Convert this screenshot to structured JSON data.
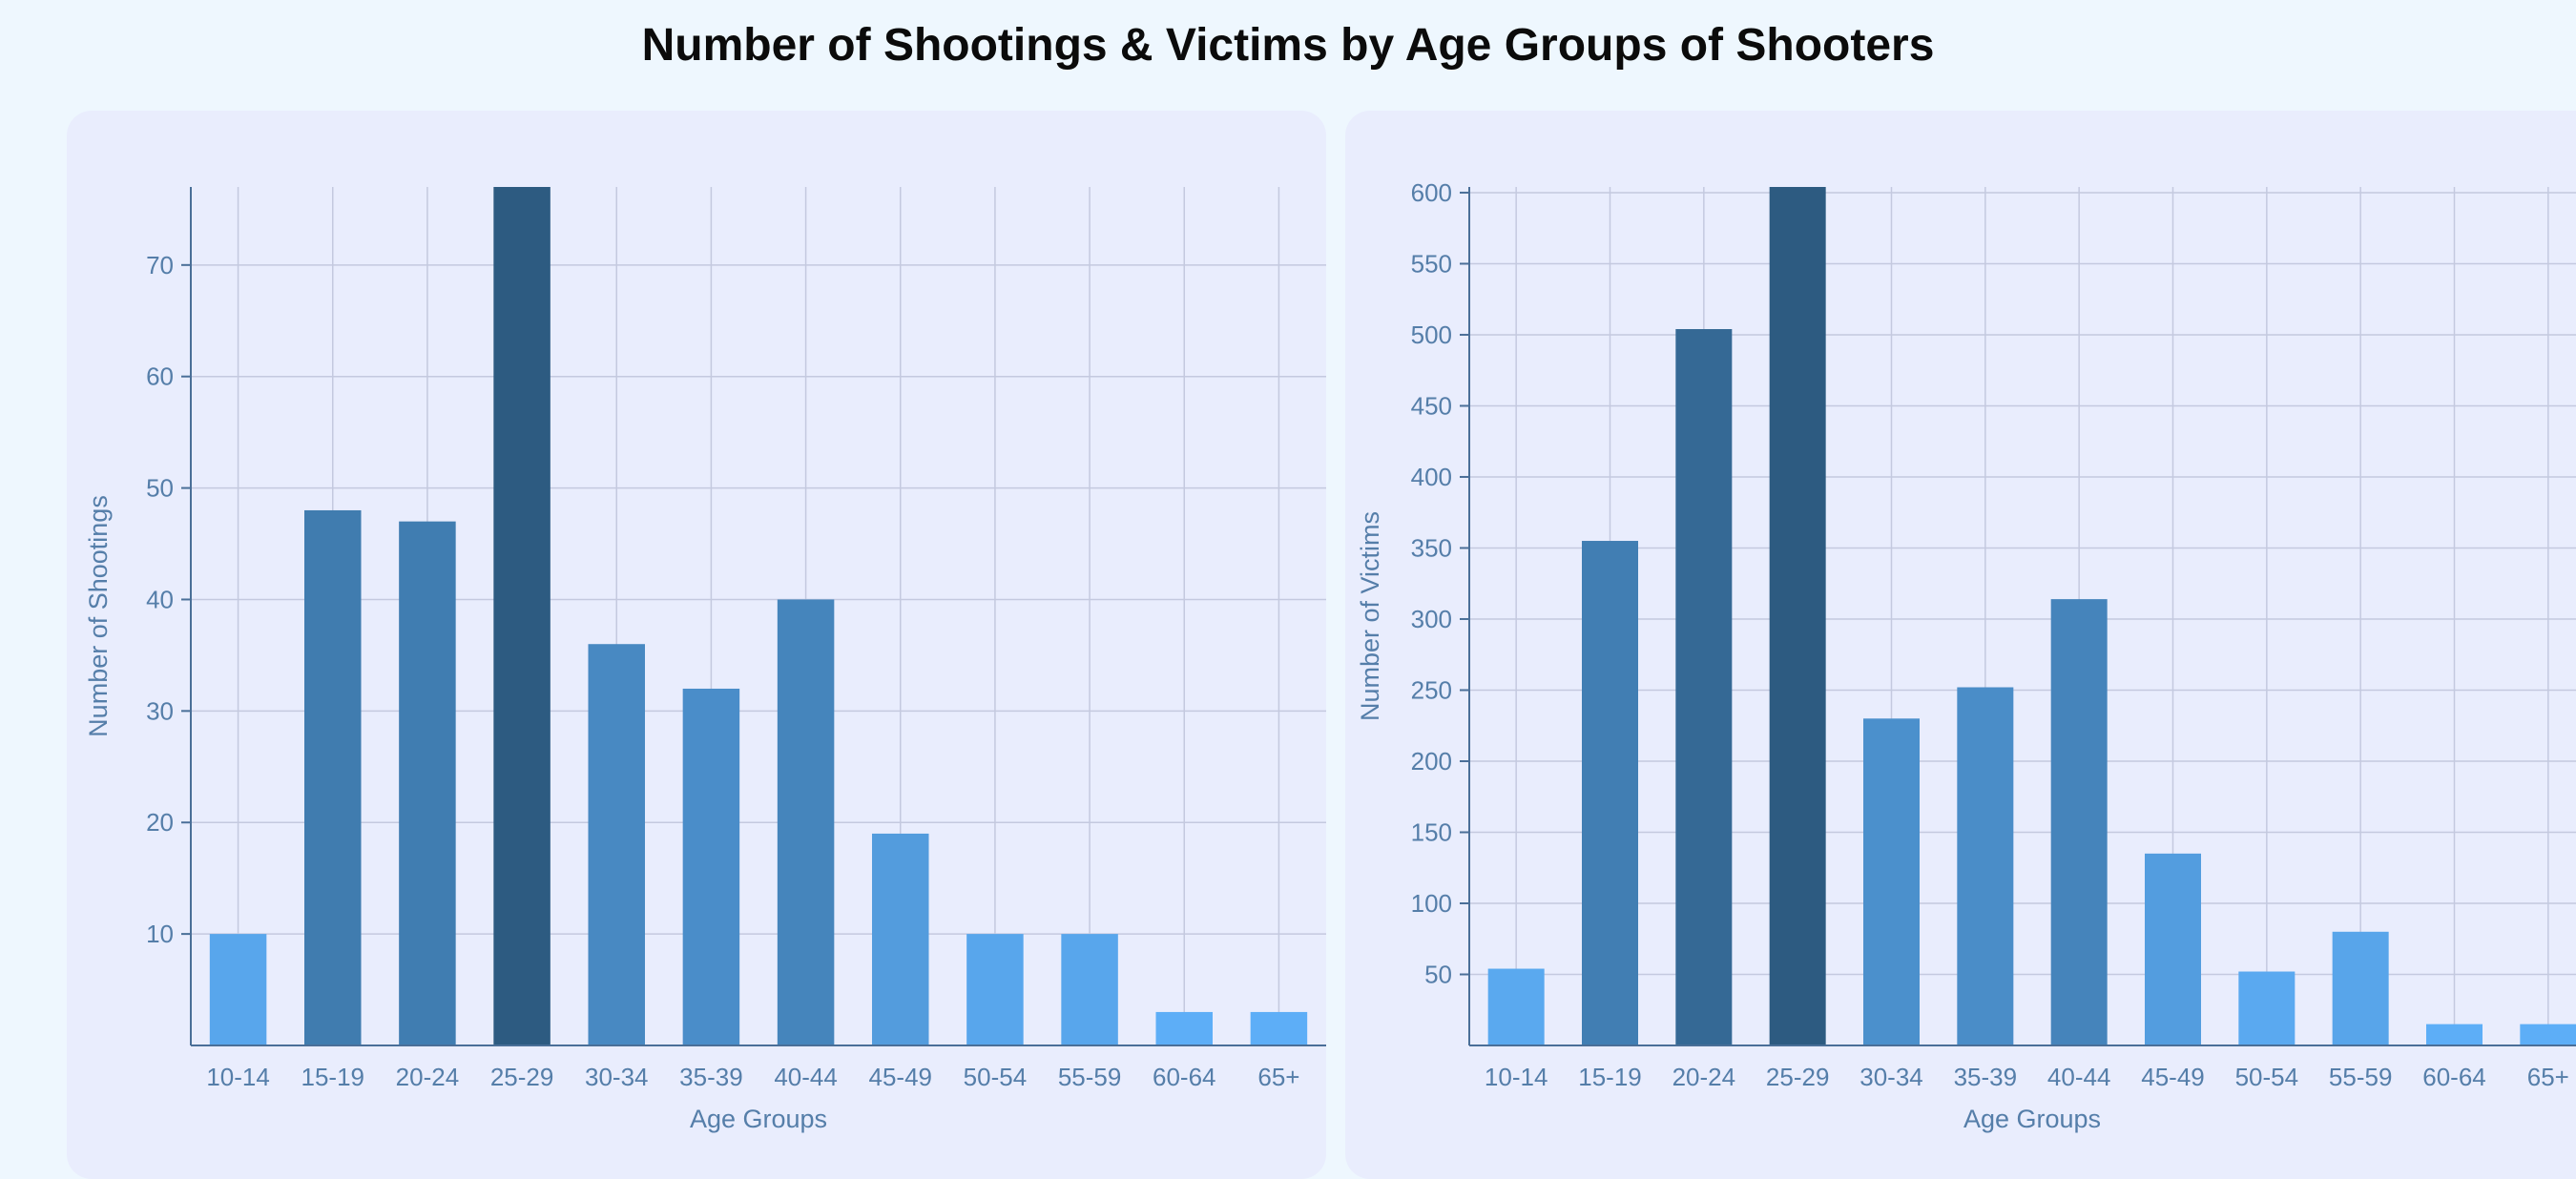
{
  "title": "Number of Shootings & Victims by Age Groups of Shooters",
  "chart_data": [
    {
      "type": "bar",
      "categories": [
        "10-14",
        "15-19",
        "20-24",
        "25-29",
        "30-34",
        "35-39",
        "40-44",
        "45-49",
        "50-54",
        "55-59",
        "60-64",
        "65+"
      ],
      "values": [
        10,
        48,
        47,
        77,
        36,
        32,
        40,
        19,
        10,
        10,
        3,
        3
      ],
      "xlabel": "Age Groups",
      "ylabel": "Number of Shootings",
      "ylim": [
        0,
        77
      ],
      "yticks": [
        10,
        20,
        30,
        40,
        50,
        60,
        70
      ],
      "grid": true,
      "bar_color_scale": {
        "low": "#5daef7",
        "high": "#2d5b81"
      }
    },
    {
      "type": "bar",
      "categories": [
        "10-14",
        "15-19",
        "20-24",
        "25-29",
        "30-34",
        "35-39",
        "40-44",
        "45-49",
        "50-54",
        "55-59",
        "60-64",
        "65+"
      ],
      "values": [
        54,
        355,
        504,
        604,
        230,
        252,
        314,
        135,
        52,
        80,
        15,
        15
      ],
      "xlabel": "Age Groups",
      "ylabel": "Number of Victims",
      "ylim": [
        0,
        604
      ],
      "yticks": [
        50,
        100,
        150,
        200,
        250,
        300,
        350,
        400,
        450,
        500,
        550,
        600
      ],
      "grid": true,
      "bar_color_scale": {
        "low": "#5daef7",
        "high": "#2d5b81"
      }
    }
  ]
}
